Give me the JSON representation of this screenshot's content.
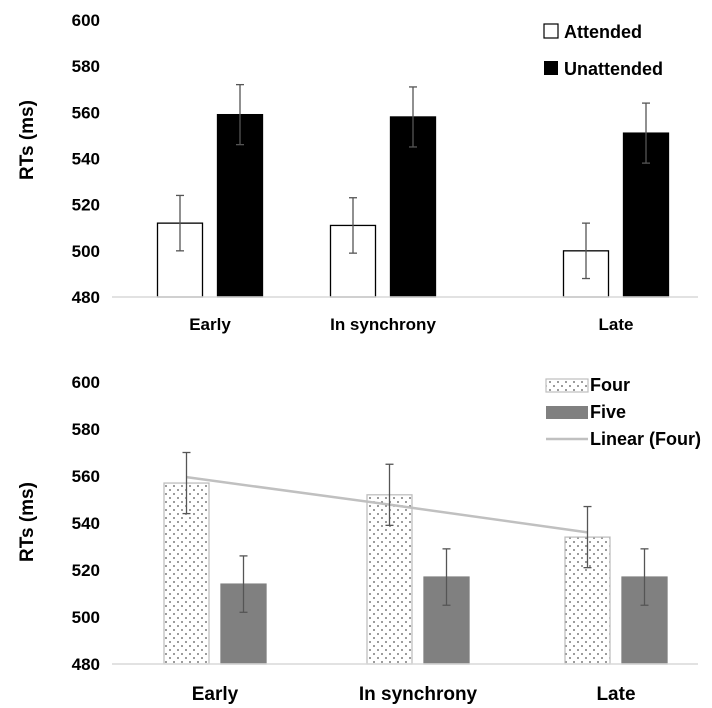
{
  "chart_data": [
    {
      "type": "bar",
      "title": "",
      "xlabel": "",
      "ylabel": "RTs (ms)",
      "ylim": [
        480,
        600
      ],
      "yticks": [
        480,
        500,
        520,
        540,
        560,
        580,
        600
      ],
      "categories": [
        "Early",
        "In synchrony",
        "Late"
      ],
      "series": [
        {
          "name": "Attended",
          "values": [
            512,
            511,
            500
          ],
          "errors": [
            12,
            12,
            12
          ],
          "color": "#ffffff",
          "stroke": "#000000",
          "pattern": "solid"
        },
        {
          "name": "Unattended",
          "values": [
            559,
            558,
            551
          ],
          "errors": [
            13,
            13,
            13
          ],
          "color": "#000000",
          "stroke": "#000000",
          "pattern": "solid"
        }
      ],
      "legend": "top-right",
      "grid": false
    },
    {
      "type": "bar",
      "title": "",
      "xlabel": "",
      "ylabel": "RTs (ms)",
      "ylim": [
        480,
        600
      ],
      "yticks": [
        480,
        500,
        520,
        540,
        560,
        580,
        600
      ],
      "categories": [
        "Early",
        "In synchrony",
        "Late"
      ],
      "series": [
        {
          "name": "Four",
          "values": [
            557,
            552,
            534
          ],
          "errors": [
            13,
            13,
            13
          ],
          "color": "#ffffff",
          "stroke": "#bfbfbf",
          "pattern": "dots"
        },
        {
          "name": "Five",
          "values": [
            514,
            517,
            517
          ],
          "errors": [
            12,
            12,
            12
          ],
          "color": "#808080",
          "stroke": "#808080",
          "pattern": "solid"
        }
      ],
      "trendline": {
        "name": "Linear (Four)",
        "of_series": "Four",
        "values": [
          559.5,
          547.8,
          536.0
        ],
        "color": "#c0c0c0"
      },
      "legend": "top-right",
      "grid": false
    }
  ]
}
